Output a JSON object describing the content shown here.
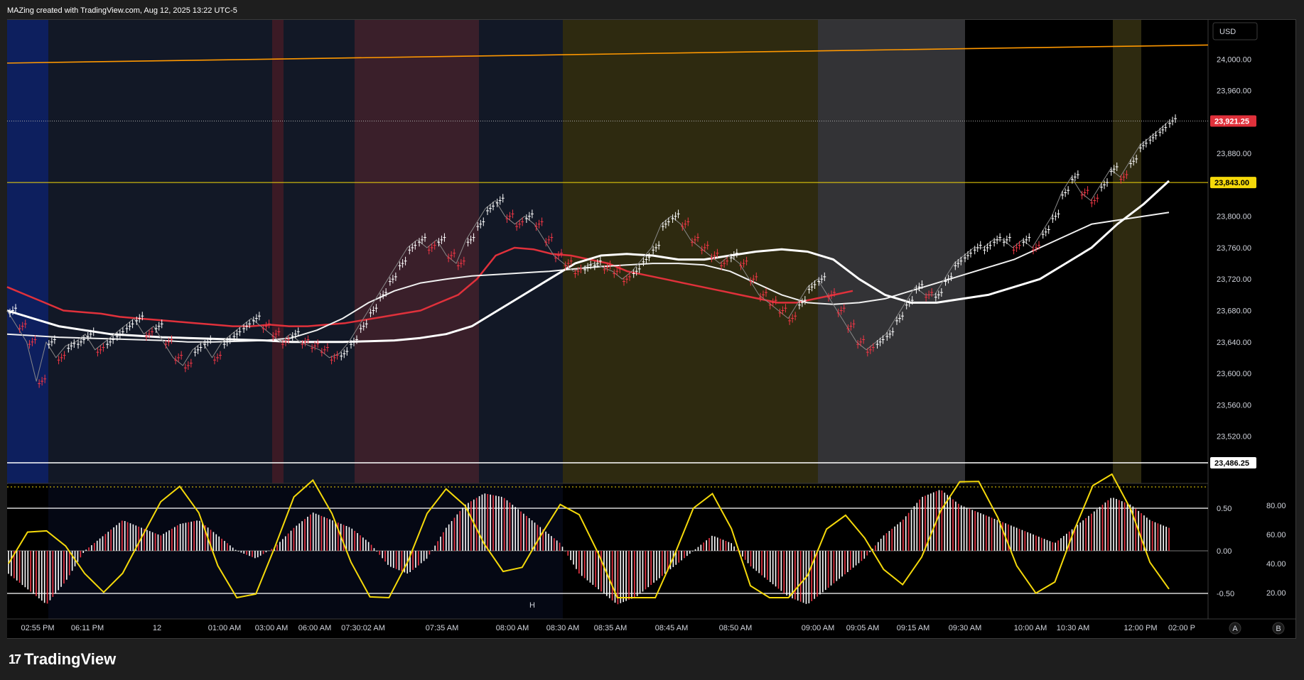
{
  "header": {
    "caption": "MAZing created with TradingView.com, Aug 12, 2025 13:22 UTC-5"
  },
  "brand": {
    "logo_mark": "17",
    "name": "TradingView"
  },
  "price_axis": {
    "currency_button": "USD",
    "ticks": [
      "24,000.00",
      "23,960.00",
      "23,880.00",
      "23,800.00",
      "23,760.00",
      "23,720.00",
      "23,680.00",
      "23,640.00",
      "23,600.00",
      "23,560.00",
      "23,520.00"
    ],
    "tick_values": [
      24000,
      23960,
      23880,
      23800,
      23760,
      23720,
      23680,
      23640,
      23600,
      23560,
      23520
    ],
    "labels": [
      {
        "text": "23,921.25",
        "value": 23921.25,
        "bg": "#e0313b",
        "fg": "#ffffff"
      },
      {
        "text": "23,843.00",
        "value": 23843.0,
        "bg": "#f5d90a",
        "fg": "#000000"
      },
      {
        "text": "23,486.25",
        "value": 23486.25,
        "bg": "#ffffff",
        "fg": "#000000"
      }
    ]
  },
  "osc_axis": {
    "left_ticks": [
      {
        "text": "0.50",
        "value": 0.5
      },
      {
        "text": "0.00",
        "value": 0
      },
      {
        "text": "-0.50",
        "value": -0.5
      }
    ],
    "right_ticks": [
      "80.00",
      "60.00",
      "40.00",
      "20.00"
    ],
    "marker_letter": "H"
  },
  "time_axis": {
    "labels": [
      "02:55 PM",
      "06:11 PM",
      "12",
      "01:00 AM",
      "03:00 AM",
      "06:00 AM",
      "07:30:02 AM",
      "07:35 AM",
      "08:00 AM",
      "08:30 AM",
      "08:35 AM",
      "08:45 AM",
      "08:50 AM",
      "09:00 AM",
      "09:05 AM",
      "09:15 AM",
      "09:30 AM",
      "10:00 AM",
      "10:30 AM",
      "12:00 PM",
      "02:00 P"
    ],
    "buttons": [
      "A",
      "B"
    ]
  },
  "colors": {
    "bull": "#ffffff",
    "bear": "#f23645",
    "orange_line": "#ff9800",
    "yellow_line": "#f5d90a",
    "ema_red": "#e0313b",
    "ema_white": "#ffffff",
    "ema_grey": "#9e9e9e"
  },
  "chart_data": {
    "type": "line",
    "ylim": [
      23460,
      24050
    ],
    "ohlc_close_series": [
      23680,
      23660,
      23640,
      23590,
      23640,
      23620,
      23635,
      23640,
      23650,
      23630,
      23640,
      23650,
      23660,
      23670,
      23650,
      23660,
      23640,
      23620,
      23610,
      23630,
      23640,
      23620,
      23640,
      23650,
      23660,
      23670,
      23660,
      23650,
      23640,
      23650,
      23640,
      23635,
      23630,
      23620,
      23625,
      23640,
      23660,
      23680,
      23700,
      23720,
      23740,
      23760,
      23770,
      23760,
      23770,
      23750,
      23740,
      23770,
      23790,
      23810,
      23820,
      23800,
      23790,
      23800,
      23790,
      23770,
      23750,
      23740,
      23730,
      23735,
      23740,
      23735,
      23730,
      23720,
      23730,
      23745,
      23760,
      23790,
      23800,
      23790,
      23770,
      23760,
      23750,
      23740,
      23750,
      23740,
      23720,
      23700,
      23690,
      23680,
      23670,
      23690,
      23710,
      23720,
      23700,
      23680,
      23660,
      23640,
      23630,
      23640,
      23650,
      23670,
      23690,
      23710,
      23700,
      23700,
      23720,
      23740,
      23750,
      23760,
      23760,
      23770,
      23770,
      23760,
      23770,
      23760,
      23780,
      23800,
      23830,
      23850,
      23830,
      23820,
      23840,
      23860,
      23850,
      23870,
      23890,
      23900,
      23910,
      23921.25
    ],
    "horizontal_lines": [
      23921.25,
      23843.0,
      23486.25
    ],
    "trend_line": {
      "from": 23995,
      "to": 24018
    },
    "ema_red": [
      23710,
      23700,
      23690,
      23680,
      23678,
      23676,
      23672,
      23670,
      23668,
      23666,
      23664,
      23662,
      23660,
      23660,
      23662,
      23660,
      23660,
      23662,
      23664,
      23668,
      23672,
      23676,
      23680,
      23690,
      23700,
      23720,
      23750,
      23760,
      23758,
      23752,
      23750,
      23745,
      23740,
      23730,
      23725,
      23720,
      23715,
      23710,
      23705,
      23700,
      23695,
      23690,
      23690,
      23695,
      23700,
      23705
    ],
    "ema_white": [
      23680,
      23670,
      23660,
      23655,
      23650,
      23648,
      23646,
      23645,
      23644,
      23643,
      23642,
      23640,
      23640,
      23640,
      23641,
      23642,
      23645,
      23650,
      23660,
      23680,
      23700,
      23720,
      23740,
      23750,
      23752,
      23750,
      23745,
      23745,
      23750,
      23755,
      23758,
      23755,
      23745,
      23720,
      23700,
      23690,
      23690,
      23695,
      23700,
      23710,
      23720,
      23740,
      23760,
      23790,
      23815,
      23845
    ],
    "ema_white2": [
      23650,
      23648,
      23646,
      23645,
      23644,
      23643,
      23642,
      23640,
      23640,
      23641,
      23642,
      23645,
      23655,
      23670,
      23690,
      23705,
      23715,
      23720,
      23724,
      23726,
      23728,
      23730,
      23733,
      23736,
      23738,
      23740,
      23740,
      23738,
      23730,
      23715,
      23700,
      23690,
      23688,
      23690,
      23695,
      23705,
      23715,
      23725,
      23735,
      23745,
      23760,
      23775,
      23790,
      23795,
      23800,
      23805
    ],
    "oscillator": [
      -0.3,
      -0.5,
      -0.7,
      -0.4,
      0.0,
      0.2,
      0.4,
      0.3,
      0.2,
      0.35,
      0.4,
      0.2,
      0.0,
      -0.1,
      0.05,
      0.3,
      0.5,
      0.4,
      0.3,
      0.1,
      -0.2,
      -0.3,
      -0.1,
      0.3,
      0.6,
      0.75,
      0.7,
      0.5,
      0.3,
      0.1,
      -0.3,
      -0.5,
      -0.7,
      -0.6,
      -0.4,
      -0.2,
      0.0,
      0.2,
      0.1,
      -0.2,
      -0.4,
      -0.6,
      -0.7,
      -0.5,
      -0.3,
      -0.1,
      0.2,
      0.4,
      0.7,
      0.8,
      0.6,
      0.5,
      0.4,
      0.3,
      0.2,
      0.1,
      0.3,
      0.5,
      0.7,
      0.6,
      0.4,
      0.3
    ],
    "ylabel": "",
    "xlabel": ""
  }
}
